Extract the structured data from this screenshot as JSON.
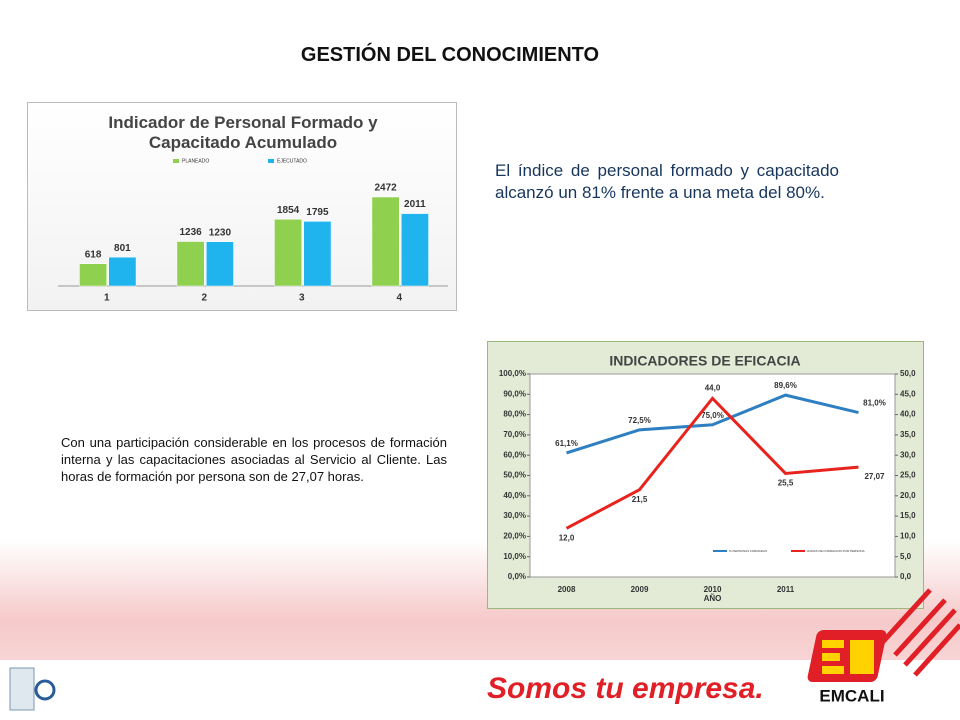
{
  "title": "GESTIÓN DEL CONOCIMIENTO",
  "text_top": "El índice de personal formado y capacitado alcanzó un 81% frente a una meta del 80%.",
  "text_bottom": "Con una participación considerable en los procesos de formación interna y las capacitaciones asociadas al Servicio al Cliente.  Las horas de formación por persona son de 27,07 horas.",
  "footer": {
    "slogan": "Somos tu empresa.",
    "brand": "EMCALI"
  },
  "chart_data": [
    {
      "type": "bar",
      "title": "Indicador de Personal Formado y Capacitado Acumulado",
      "categories": [
        "1",
        "2",
        "3",
        "4"
      ],
      "series": [
        {
          "name": "PLANEADO",
          "color": "#8fd14f",
          "values": [
            618,
            1236,
            1854,
            2472
          ]
        },
        {
          "name": "EJECUTADO",
          "color": "#1fb4ee",
          "values": [
            801,
            1230,
            1795,
            2011
          ]
        }
      ],
      "ylim": [
        0,
        3000
      ],
      "legend": "top"
    },
    {
      "type": "line",
      "title": "INDICADORES DE EFICACIA",
      "xlabel": "AÑO",
      "categories": [
        "2008",
        "2009",
        "2010",
        "2011",
        null
      ],
      "series": [
        {
          "name": "% PERSONAS FORMADAS",
          "color": "#2e7fc1",
          "values": [
            61.1,
            72.5,
            75.0,
            89.6,
            81.0
          ],
          "value_labels": [
            "61,1%",
            "72,5%",
            "75,0%",
            "89,6%",
            "81,0%"
          ]
        },
        {
          "name": "HORAS DE FORMACION POR PERSONA",
          "color": "#e8231e",
          "axis": "y2",
          "values": [
            12.0,
            21.5,
            44.0,
            25.5,
            27.07
          ],
          "value_labels": [
            "12,0",
            "21,5",
            "44,0",
            "25,5",
            "27,07"
          ]
        }
      ],
      "ylim": [
        0,
        100
      ],
      "yticks": [
        {
          "value": 0,
          "label": "0,0%"
        },
        {
          "value": 10,
          "label": "10,0%"
        },
        {
          "value": 20,
          "label": "20,0%"
        },
        {
          "value": 30,
          "label": "30,0%"
        },
        {
          "value": 40,
          "label": "40,0%"
        },
        {
          "value": 50,
          "label": "50,0%"
        },
        {
          "value": 60,
          "label": "60,0%"
        },
        {
          "value": 70,
          "label": "70,0%"
        },
        {
          "value": 80,
          "label": "80,0%"
        },
        {
          "value": 90,
          "label": "90,0%"
        },
        {
          "value": 100,
          "label": "100,0%"
        }
      ],
      "y2lim": [
        0,
        50
      ],
      "y2ticks": [
        {
          "value": 0,
          "label": "0,0"
        },
        {
          "value": 5,
          "label": "5,0"
        },
        {
          "value": 10,
          "label": "10,0"
        },
        {
          "value": 15,
          "label": "15,0"
        },
        {
          "value": 20,
          "label": "20,0"
        },
        {
          "value": 25,
          "label": "25,0"
        },
        {
          "value": 30,
          "label": "30,0"
        },
        {
          "value": 35,
          "label": "35,0"
        },
        {
          "value": 40,
          "label": "40,0"
        },
        {
          "value": 45,
          "label": "45,0"
        },
        {
          "value": 50,
          "label": "50,0"
        }
      ],
      "grid": false,
      "legend": "bottom"
    }
  ]
}
